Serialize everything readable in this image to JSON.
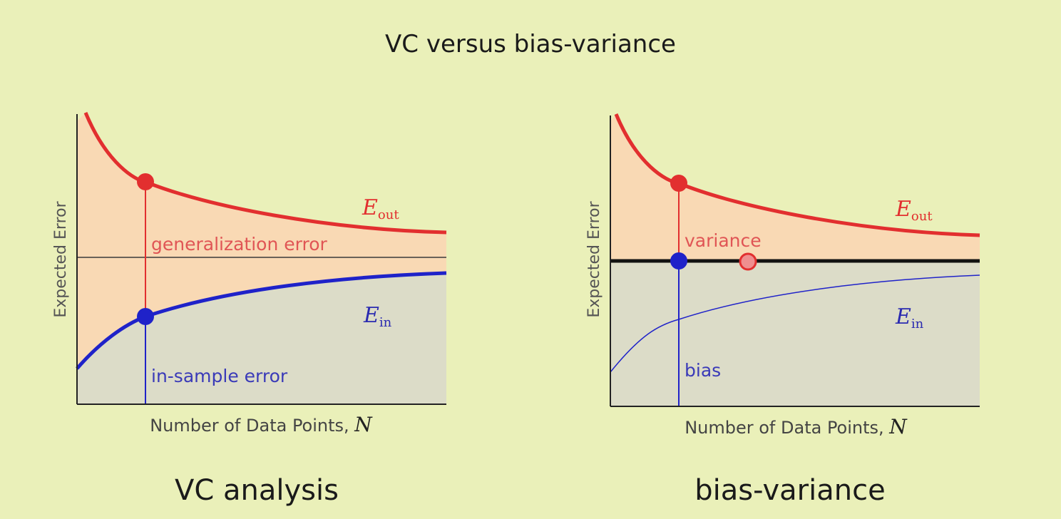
{
  "title": "VC versus bias-variance",
  "colors": {
    "background": "#eaf0b9",
    "red": "#e22f2f",
    "blue": "#1f22c9",
    "orange_fill": "#f9d9b4",
    "gray_fill": "#dcdcc8",
    "axis": "#222222"
  },
  "panels": [
    {
      "caption": "VC analysis",
      "ylabel": "Expected Error",
      "xlabel": "Number of Data Points, ",
      "xvar": "N",
      "eout": {
        "symbol": "E",
        "sub": "out"
      },
      "ein": {
        "symbol": "E",
        "sub": "in"
      },
      "upper_annotation": "generalization error",
      "lower_annotation": "in-sample error"
    },
    {
      "caption": "bias-variance",
      "ylabel": "Expected Error",
      "xlabel": "Number of Data Points, ",
      "xvar": "N",
      "eout": {
        "symbol": "E",
        "sub": "out"
      },
      "ein": {
        "symbol": "E",
        "sub": "in"
      },
      "upper_annotation": "variance",
      "lower_annotation": "bias"
    }
  ]
}
